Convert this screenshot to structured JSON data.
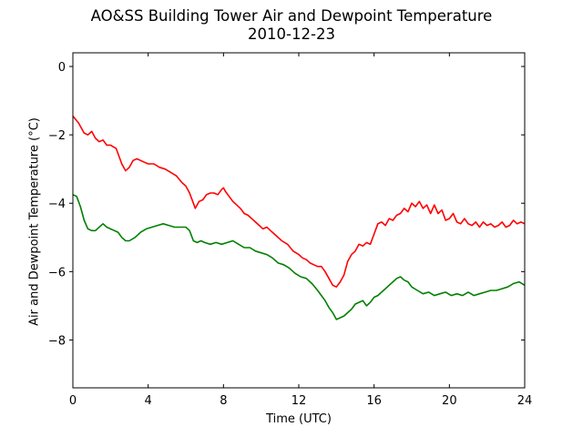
{
  "chart_data": {
    "type": "line",
    "title": "AO&SS Building Tower Air and Dewpoint Temperature",
    "subtitle": "2010-12-23",
    "xlabel": "Time (UTC)",
    "ylabel": "Air and Dewpoint Temperature (°C)",
    "xlim": [
      0,
      24
    ],
    "ylim": [
      -9.4,
      0.4
    ],
    "xticks": [
      0,
      4,
      8,
      12,
      16,
      20,
      24
    ],
    "yticks": [
      -8,
      -6,
      -4,
      -2,
      0
    ],
    "grid": false,
    "series": [
      {
        "color": "#ff0000",
        "x": [
          0,
          0.3,
          0.6,
          0.8,
          1.0,
          1.2,
          1.4,
          1.6,
          1.8,
          2.0,
          2.3,
          2.6,
          2.8,
          3.0,
          3.2,
          3.4,
          3.6,
          3.8,
          4.0,
          4.3,
          4.6,
          4.9,
          5.2,
          5.5,
          5.8,
          6.0,
          6.2,
          6.4,
          6.5,
          6.6,
          6.7,
          6.9,
          7.1,
          7.3,
          7.5,
          7.7,
          7.9,
          8.0,
          8.1,
          8.3,
          8.5,
          8.7,
          8.9,
          9.1,
          9.3,
          9.5,
          9.7,
          9.9,
          10.1,
          10.3,
          10.5,
          10.8,
          11.1,
          11.4,
          11.7,
          12.0,
          12.2,
          12.4,
          12.6,
          12.8,
          13.0,
          13.2,
          13.4,
          13.6,
          13.8,
          14.0,
          14.2,
          14.4,
          14.6,
          14.8,
          15.0,
          15.2,
          15.4,
          15.6,
          15.8,
          16.0,
          16.2,
          16.4,
          16.6,
          16.8,
          17.0,
          17.2,
          17.4,
          17.6,
          17.8,
          18.0,
          18.2,
          18.4,
          18.6,
          18.8,
          19.0,
          19.2,
          19.4,
          19.6,
          19.8,
          20.0,
          20.2,
          20.4,
          20.6,
          20.8,
          21.0,
          21.2,
          21.4,
          21.6,
          21.8,
          22.0,
          22.2,
          22.4,
          22.6,
          22.8,
          23.0,
          23.2,
          23.4,
          23.6,
          23.8,
          24.0
        ],
        "y": [
          -1.45,
          -1.65,
          -1.95,
          -2.0,
          -1.9,
          -2.1,
          -2.2,
          -2.15,
          -2.3,
          -2.3,
          -2.4,
          -2.85,
          -3.05,
          -2.95,
          -2.75,
          -2.7,
          -2.75,
          -2.8,
          -2.85,
          -2.85,
          -2.95,
          -3.0,
          -3.1,
          -3.2,
          -3.4,
          -3.5,
          -3.7,
          -4.0,
          -4.15,
          -4.05,
          -3.95,
          -3.9,
          -3.75,
          -3.7,
          -3.7,
          -3.75,
          -3.6,
          -3.55,
          -3.65,
          -3.8,
          -3.95,
          -4.05,
          -4.15,
          -4.3,
          -4.35,
          -4.45,
          -4.55,
          -4.65,
          -4.75,
          -4.7,
          -4.8,
          -4.95,
          -5.1,
          -5.2,
          -5.4,
          -5.5,
          -5.6,
          -5.65,
          -5.75,
          -5.8,
          -5.85,
          -5.85,
          -6.0,
          -6.2,
          -6.4,
          -6.45,
          -6.3,
          -6.1,
          -5.7,
          -5.5,
          -5.4,
          -5.2,
          -5.25,
          -5.15,
          -5.2,
          -4.9,
          -4.6,
          -4.55,
          -4.65,
          -4.45,
          -4.5,
          -4.35,
          -4.3,
          -4.15,
          -4.25,
          -4.0,
          -4.1,
          -3.95,
          -4.15,
          -4.05,
          -4.3,
          -4.05,
          -4.3,
          -4.2,
          -4.5,
          -4.45,
          -4.3,
          -4.55,
          -4.6,
          -4.45,
          -4.6,
          -4.65,
          -4.55,
          -4.7,
          -4.55,
          -4.65,
          -4.6,
          -4.7,
          -4.65,
          -4.55,
          -4.7,
          -4.65,
          -4.5,
          -4.6,
          -4.55,
          -4.6
        ]
      },
      {
        "color": "#008000",
        "x": [
          0,
          0.2,
          0.4,
          0.6,
          0.8,
          1.0,
          1.2,
          1.4,
          1.6,
          1.8,
          2.0,
          2.2,
          2.4,
          2.6,
          2.8,
          3.0,
          3.3,
          3.6,
          3.9,
          4.2,
          4.5,
          4.8,
          5.1,
          5.4,
          5.7,
          6.0,
          6.2,
          6.4,
          6.6,
          6.8,
          7.0,
          7.3,
          7.6,
          7.9,
          8.2,
          8.5,
          8.8,
          9.1,
          9.4,
          9.7,
          10.0,
          10.3,
          10.6,
          10.9,
          11.2,
          11.5,
          11.8,
          12.1,
          12.4,
          12.7,
          13.0,
          13.2,
          13.4,
          13.6,
          13.8,
          14.0,
          14.2,
          14.4,
          14.6,
          14.8,
          15.0,
          15.2,
          15.4,
          15.6,
          15.8,
          16.0,
          16.2,
          16.4,
          16.6,
          16.8,
          17.0,
          17.2,
          17.4,
          17.6,
          17.8,
          18.0,
          18.3,
          18.6,
          18.9,
          19.2,
          19.5,
          19.8,
          20.1,
          20.4,
          20.7,
          21.0,
          21.3,
          21.6,
          21.9,
          22.2,
          22.5,
          22.8,
          23.1,
          23.4,
          23.7,
          24.0
        ],
        "y": [
          -3.75,
          -3.8,
          -4.1,
          -4.5,
          -4.75,
          -4.8,
          -4.8,
          -4.7,
          -4.6,
          -4.7,
          -4.75,
          -4.8,
          -4.85,
          -5.0,
          -5.1,
          -5.1,
          -5.0,
          -4.85,
          -4.75,
          -4.7,
          -4.65,
          -4.6,
          -4.65,
          -4.7,
          -4.7,
          -4.7,
          -4.8,
          -5.1,
          -5.15,
          -5.1,
          -5.15,
          -5.2,
          -5.15,
          -5.2,
          -5.15,
          -5.1,
          -5.2,
          -5.3,
          -5.3,
          -5.4,
          -5.45,
          -5.5,
          -5.6,
          -5.75,
          -5.8,
          -5.9,
          -6.05,
          -6.15,
          -6.2,
          -6.35,
          -6.55,
          -6.7,
          -6.85,
          -7.05,
          -7.2,
          -7.4,
          -7.35,
          -7.3,
          -7.2,
          -7.1,
          -6.95,
          -6.9,
          -6.85,
          -7.0,
          -6.9,
          -6.75,
          -6.7,
          -6.6,
          -6.5,
          -6.4,
          -6.3,
          -6.2,
          -6.15,
          -6.25,
          -6.3,
          -6.45,
          -6.55,
          -6.65,
          -6.6,
          -6.7,
          -6.65,
          -6.6,
          -6.7,
          -6.65,
          -6.7,
          -6.6,
          -6.7,
          -6.65,
          -6.6,
          -6.55,
          -6.55,
          -6.5,
          -6.45,
          -6.35,
          -6.3,
          -6.4
        ]
      }
    ]
  }
}
